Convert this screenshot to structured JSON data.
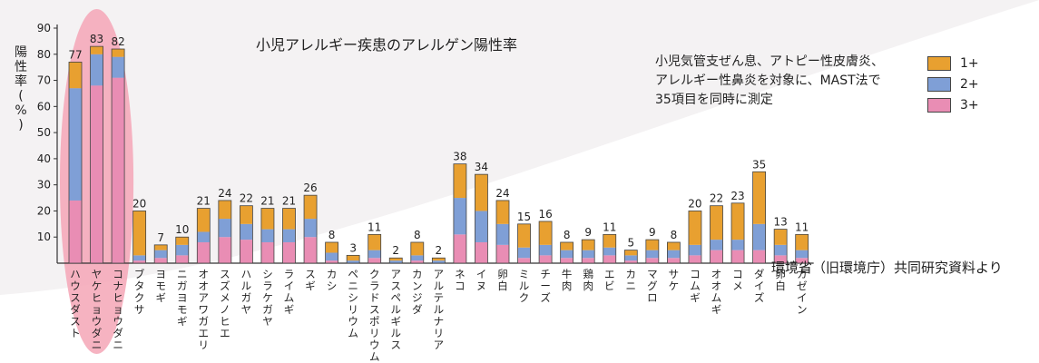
{
  "chart_data": {
    "type": "bar",
    "title": "小児アレルギー疾患のアレルゲン陽性率",
    "ylabel": "陽性率(%)",
    "ylim": [
      0,
      90
    ],
    "yticks": [
      10,
      20,
      30,
      40,
      50,
      60,
      70,
      80,
      90
    ],
    "note_lines": [
      "小児気管支ぜん息、アトピー性皮膚炎、",
      "アレルギー性鼻炎を対象に、MAST法で",
      "35項目を同時に測定"
    ],
    "source": "環境省（旧環境庁）共同研究資料より",
    "legend": [
      {
        "label": "1+",
        "color": "#e8a030"
      },
      {
        "label": "2+",
        "color": "#7f9fd6"
      },
      {
        "label": "3+",
        "color": "#e98db4"
      }
    ],
    "categories": [
      "ハウスダスト",
      "ヤケヒョウダニ",
      "コナヒョウダニ",
      "ブタクサ",
      "ヨモギ",
      "ニガヨモギ",
      "オオアワガエリ",
      "スズメノヒエ",
      "ハルガヤ",
      "シラケガヤ",
      "ライムギ",
      "スギ",
      "カシ",
      "ペニシリウム",
      "クラドスポリウム",
      "アスペルギルス",
      "カンジダ",
      "アルテルナリア",
      "ネコ",
      "イヌ",
      "卵白",
      "ミルク",
      "チーズ",
      "牛肉",
      "鶏肉",
      "エビ",
      "カニ",
      "マグロ",
      "サケ",
      "コムギ",
      "オオムギ",
      "コメ",
      "ダイズ",
      "卵白",
      "カゼイン"
    ],
    "totals": [
      77,
      83,
      82,
      20,
      7,
      10,
      21,
      24,
      22,
      21,
      21,
      26,
      8,
      3,
      11,
      2,
      8,
      2,
      38,
      34,
      24,
      15,
      16,
      8,
      9,
      11,
      5,
      9,
      8,
      20,
      22,
      23,
      35,
      13,
      11
    ],
    "series": [
      {
        "name": "3+",
        "color": "#e98db4",
        "values": [
          24,
          68,
          71,
          1,
          2,
          3,
          8,
          10,
          9,
          8,
          8,
          10,
          1,
          0,
          2,
          0,
          1,
          0,
          11,
          8,
          7,
          2,
          3,
          2,
          2,
          3,
          1,
          2,
          2,
          3,
          5,
          5,
          5,
          3,
          2
        ]
      },
      {
        "name": "2+",
        "color": "#7f9fd6",
        "values": [
          43,
          12,
          8,
          2,
          3,
          4,
          4,
          7,
          6,
          5,
          5,
          7,
          3,
          1,
          3,
          1,
          2,
          1,
          14,
          12,
          8,
          4,
          4,
          3,
          3,
          3,
          2,
          3,
          3,
          4,
          4,
          4,
          10,
          4,
          3
        ]
      },
      {
        "name": "1+",
        "color": "#e8a030",
        "values": [
          10,
          3,
          3,
          17,
          2,
          3,
          9,
          7,
          7,
          8,
          8,
          9,
          4,
          2,
          6,
          1,
          5,
          1,
          13,
          14,
          9,
          9,
          9,
          3,
          4,
          5,
          2,
          4,
          3,
          13,
          13,
          14,
          20,
          6,
          6
        ]
      }
    ],
    "highlight_categories": [
      "ハウスダスト",
      "ヤケヒョウダニ",
      "コナヒョウダニ"
    ]
  }
}
